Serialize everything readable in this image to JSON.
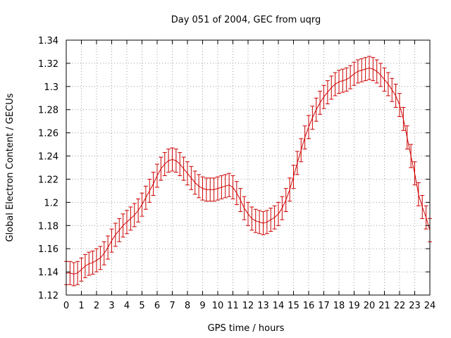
{
  "chart_data": {
    "type": "line",
    "title": "Day 051 of 2004, GEC from uqrg",
    "xlabel": "GPS time / hours",
    "ylabel": "Global Electron Content / GECUs",
    "xlim": [
      0,
      24
    ],
    "ylim": [
      1.12,
      1.34
    ],
    "xticks": [
      "0",
      "1",
      "2",
      "3",
      "4",
      "5",
      "6",
      "7",
      "8",
      "9",
      "10",
      "11",
      "12",
      "13",
      "14",
      "15",
      "16",
      "17",
      "18",
      "19",
      "20",
      "21",
      "22",
      "23",
      "24"
    ],
    "yticks": [
      "1.12",
      "1.14",
      "1.16",
      "1.18",
      "1.2",
      "1.22",
      "1.24",
      "1.26",
      "1.28",
      "1.3",
      "1.32",
      "1.34"
    ],
    "grid": true,
    "error_bar": 0.01,
    "series": [
      {
        "name": "GEC",
        "color": "#cc0000",
        "x": [
          0,
          0.25,
          0.5,
          0.75,
          1,
          1.25,
          1.5,
          1.75,
          2,
          2.25,
          2.5,
          2.75,
          3,
          3.25,
          3.5,
          3.75,
          4,
          4.25,
          4.5,
          4.75,
          5,
          5.25,
          5.5,
          5.75,
          6,
          6.25,
          6.5,
          6.75,
          7,
          7.25,
          7.5,
          7.75,
          8,
          8.25,
          8.5,
          8.75,
          9,
          9.25,
          9.5,
          9.75,
          10,
          10.25,
          10.5,
          10.75,
          11,
          11.25,
          11.5,
          11.75,
          12,
          12.25,
          12.5,
          12.75,
          13,
          13.25,
          13.5,
          13.75,
          14,
          14.25,
          14.5,
          14.75,
          15,
          15.25,
          15.5,
          15.75,
          16,
          16.25,
          16.5,
          16.75,
          17,
          17.25,
          17.5,
          17.75,
          18,
          18.25,
          18.5,
          18.75,
          19,
          19.25,
          19.5,
          19.75,
          20,
          20.25,
          20.5,
          20.75,
          21,
          21.25,
          21.5,
          21.75,
          22,
          22.25,
          22.5,
          22.75,
          23,
          23.25,
          23.5,
          23.75,
          24
        ],
        "y": [
          1.139,
          1.139,
          1.138,
          1.139,
          1.142,
          1.145,
          1.147,
          1.148,
          1.15,
          1.152,
          1.156,
          1.161,
          1.167,
          1.172,
          1.176,
          1.18,
          1.183,
          1.186,
          1.189,
          1.193,
          1.198,
          1.204,
          1.21,
          1.216,
          1.223,
          1.229,
          1.233,
          1.236,
          1.237,
          1.236,
          1.233,
          1.229,
          1.225,
          1.221,
          1.217,
          1.214,
          1.212,
          1.211,
          1.211,
          1.211,
          1.212,
          1.213,
          1.214,
          1.215,
          1.213,
          1.208,
          1.202,
          1.195,
          1.19,
          1.186,
          1.184,
          1.183,
          1.182,
          1.183,
          1.185,
          1.187,
          1.19,
          1.195,
          1.202,
          1.211,
          1.222,
          1.234,
          1.245,
          1.256,
          1.265,
          1.273,
          1.28,
          1.286,
          1.291,
          1.295,
          1.299,
          1.302,
          1.304,
          1.305,
          1.306,
          1.308,
          1.311,
          1.313,
          1.314,
          1.315,
          1.316,
          1.315,
          1.313,
          1.31,
          1.306,
          1.302,
          1.297,
          1.292,
          1.284,
          1.272,
          1.256,
          1.24,
          1.225,
          1.207,
          1.196,
          1.187,
          1.176
        ]
      }
    ]
  }
}
